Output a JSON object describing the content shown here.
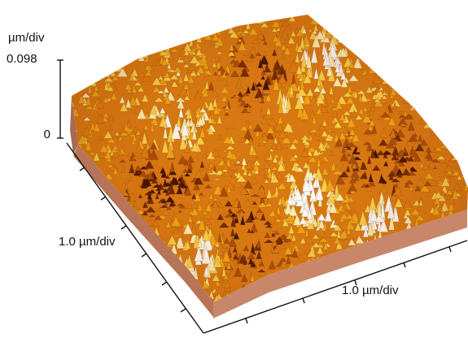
{
  "z_axis": {
    "unit": "µm/div",
    "max_label": "0.098",
    "min_label": "0"
  },
  "y_axis": {
    "label": "1.0 µm/div"
  },
  "x_axis": {
    "label": "1.0 µm/div"
  },
  "colors": {
    "background": "#ffffff",
    "side_face": "#c8866a",
    "side_face_dark": "#a86a52",
    "colormap": [
      "#3a0a00",
      "#6b2200",
      "#a8480a",
      "#dd7a10",
      "#f3a516",
      "#fbd24a",
      "#fff2b8",
      "#ffffff"
    ]
  }
}
